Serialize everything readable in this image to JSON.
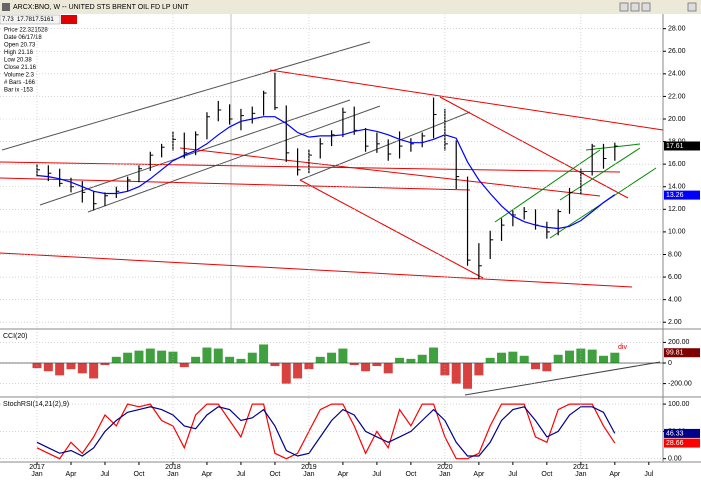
{
  "chart_data": [
    {
      "type": "ohlc",
      "title": "ARCX:BNO, W -- UNITED STS BRENT OIL FD LP UNIT",
      "quote": [
        "7.73",
        "17.78",
        "17.51",
        "61"
      ],
      "info": [
        "Price 22.321528",
        "Date 06/17/18",
        "Open 20.73",
        "High 21.16",
        "Low 20.38",
        "Close 21.16",
        "Volume 2.3",
        "# Bars -166",
        "Bar ix -153"
      ],
      "categories": [
        "2017-01",
        "2017-02",
        "2017-03",
        "2017-04",
        "2017-05",
        "2017-06",
        "2017-07",
        "2017-08",
        "2017-09",
        "2017-10",
        "2017-11",
        "2017-12",
        "2018-01",
        "2018-02",
        "2018-03",
        "2018-04",
        "2018-05",
        "2018-06",
        "2018-07",
        "2018-08",
        "2018-09",
        "2018-10",
        "2018-11",
        "2018-12",
        "2019-01",
        "2019-02",
        "2019-03",
        "2019-04",
        "2019-05",
        "2019-06",
        "2019-07",
        "2019-08",
        "2019-09",
        "2019-10",
        "2019-11",
        "2019-12",
        "2020-01",
        "2020-02",
        "2020-03",
        "2020-04",
        "2020-05",
        "2020-06",
        "2020-07",
        "2020-08",
        "2020-09",
        "2020-10",
        "2020-11",
        "2020-12",
        "2021-01",
        "2021-02",
        "2021-03",
        "2021-04",
        "2021-05",
        "2021-06",
        "2021-07"
      ],
      "high": [
        16.0,
        15.9,
        15.6,
        14.8,
        14.5,
        13.6,
        13.5,
        14.0,
        14.9,
        15.9,
        17.1,
        17.8,
        18.9,
        18.8,
        18.9,
        20.6,
        21.6,
        21.3,
        20.9,
        21.1,
        22.5,
        24.1,
        21.2,
        17.4,
        17.3,
        18.3,
        19.0,
        21.0,
        21.1,
        19.2,
        18.8,
        18.2,
        18.9,
        18.3,
        18.8,
        21.9,
        20.9,
        18.1,
        14.9,
        9.0,
        10.1,
        11.2,
        11.9,
        12.2,
        12.0,
        10.9,
        12.0,
        13.9,
        15.6,
        17.8,
        17.8,
        17.9,
        null,
        null,
        null
      ],
      "low": [
        14.9,
        14.5,
        14.0,
        13.5,
        12.6,
        11.9,
        12.3,
        13.0,
        13.6,
        14.4,
        15.4,
        16.6,
        17.2,
        16.5,
        16.8,
        18.2,
        19.8,
        19.5,
        19.0,
        19.6,
        20.3,
        20.8,
        16.2,
        15.0,
        15.2,
        16.5,
        17.6,
        18.4,
        18.6,
        17.1,
        17.0,
        16.3,
        16.5,
        17.1,
        17.5,
        18.3,
        17.2,
        13.8,
        7.0,
        5.8,
        7.6,
        9.2,
        10.5,
        11.1,
        10.2,
        9.4,
        9.7,
        11.6,
        13.3,
        15.0,
        15.6,
        16.3,
        null,
        null,
        null
      ],
      "close": [
        15.5,
        15.2,
        14.3,
        14.0,
        13.5,
        12.5,
        13.2,
        13.6,
        14.6,
        15.6,
        16.8,
        17.5,
        18.2,
        17.0,
        18.6,
        20.2,
        20.8,
        20.0,
        20.3,
        20.5,
        22.3,
        21.0,
        17.0,
        15.5,
        16.8,
        17.8,
        18.6,
        20.6,
        19.0,
        17.6,
        17.8,
        16.9,
        17.6,
        17.8,
        18.5,
        20.4,
        17.8,
        14.9,
        7.5,
        7.0,
        9.3,
        10.6,
        11.5,
        11.8,
        10.6,
        10.0,
        11.8,
        13.5,
        15.2,
        17.6,
        16.5,
        17.6,
        null,
        null,
        null
      ],
      "color": "#000000",
      "series": [
        {
          "color": "#0000ff",
          "values": [
            15.0,
            14.9,
            14.7,
            14.4,
            14.0,
            13.6,
            13.4,
            13.4,
            13.6,
            14.0,
            14.7,
            15.5,
            16.3,
            16.8,
            17.2,
            17.8,
            18.6,
            19.3,
            19.8,
            20.0,
            20.2,
            20.2,
            19.6,
            18.8,
            18.4,
            18.5,
            18.5,
            18.6,
            18.9,
            19.1,
            18.9,
            18.6,
            18.2,
            17.9,
            17.9,
            18.2,
            18.6,
            18.3,
            16.2,
            14.6,
            13.4,
            12.3,
            11.4,
            10.9,
            10.6,
            10.4,
            10.3,
            10.5,
            11.0,
            11.8,
            12.6,
            13.3,
            null,
            null,
            null
          ]
        }
      ],
      "markers": [
        {
          "value": 17.61,
          "color": "#000000"
        },
        {
          "value": 13.26,
          "color": "#0000ff"
        }
      ],
      "ylim": [
        1.4,
        29.3
      ],
      "yticks": [
        {
          "value": 28,
          "label": "28.00"
        },
        {
          "value": 26,
          "label": "26.00"
        },
        {
          "value": 24,
          "label": "24.00"
        },
        {
          "value": 22,
          "label": "22.00"
        },
        {
          "value": 20,
          "label": "20.00"
        },
        {
          "value": 18,
          "label": "18.00"
        },
        {
          "value": 16,
          "label": "16.00"
        },
        {
          "value": 14,
          "label": "14.00"
        },
        {
          "value": 12,
          "label": "12.00"
        },
        {
          "value": 10,
          "label": "10.00"
        },
        {
          "value": 8,
          "label": "8.00"
        },
        {
          "value": 6,
          "label": "6.00"
        },
        {
          "value": 4,
          "label": "4.00"
        },
        {
          "value": 2,
          "label": "2.00"
        }
      ],
      "grid": true
    },
    {
      "type": "bar",
      "title": "CCI(20)",
      "values": [
        -50,
        -80,
        -120,
        -60,
        -100,
        -150,
        -20,
        60,
        100,
        120,
        140,
        120,
        110,
        -40,
        60,
        150,
        140,
        60,
        40,
        100,
        180,
        -30,
        -200,
        -150,
        -60,
        60,
        100,
        140,
        -20,
        -80,
        -30,
        -100,
        50,
        40,
        80,
        150,
        -120,
        -200,
        -250,
        -120,
        50,
        100,
        110,
        70,
        -60,
        -80,
        80,
        120,
        140,
        130,
        70,
        100,
        null,
        null,
        null
      ],
      "color_pos": "#008000",
      "color_neg": "#cc0000",
      "annotation": "div",
      "markers": [
        {
          "value": 99.81,
          "color": "#800000"
        }
      ],
      "ylim": [
        -330,
        330
      ],
      "yticks": [
        {
          "value": 200,
          "label": "200.00"
        },
        0,
        {
          "value": -200,
          "label": "-200.00"
        }
      ],
      "grid": true
    },
    {
      "type": "line",
      "title": "StochRSI(14,21(2),9)",
      "series": [
        {
          "color": "#ff0000",
          "values": [
            20,
            10,
            0,
            30,
            10,
            40,
            80,
            60,
            100,
            95,
            100,
            70,
            60,
            20,
            80,
            100,
            100,
            70,
            40,
            100,
            100,
            10,
            0,
            10,
            50,
            90,
            100,
            100,
            60,
            10,
            50,
            20,
            90,
            60,
            100,
            100,
            40,
            0,
            0,
            10,
            60,
            100,
            100,
            100,
            40,
            30,
            90,
            100,
            100,
            100,
            60,
            28.66,
            null,
            null,
            null
          ]
        },
        {
          "color": "#00008b",
          "values": [
            30,
            20,
            10,
            15,
            5,
            20,
            50,
            70,
            85,
            90,
            95,
            90,
            80,
            60,
            55,
            80,
            95,
            90,
            70,
            75,
            90,
            60,
            15,
            5,
            10,
            40,
            70,
            90,
            80,
            50,
            40,
            30,
            40,
            50,
            70,
            90,
            70,
            30,
            5,
            5,
            30,
            70,
            90,
            95,
            70,
            40,
            50,
            80,
            95,
            95,
            85,
            46.33,
            null,
            null,
            null
          ]
        }
      ],
      "markers": [
        {
          "value": 46.33,
          "color": "#00008b"
        },
        {
          "value": 28.66,
          "color": "#ff0000"
        }
      ],
      "ylim": [
        -6,
        113
      ],
      "yticks": [
        {
          "value": 100,
          "label": "100.00"
        },
        {
          "value": 50,
          "label": "50.00"
        },
        {
          "value": 0,
          "label": "0.00"
        }
      ],
      "grid": true,
      "xticks": [
        {
          "value": "2017-01",
          "label": "Jan"
        },
        {
          "value": "2017-04",
          "label": "Apr"
        },
        {
          "value": "2017-07",
          "label": "Jul"
        },
        {
          "value": "2017-10",
          "label": "Oct"
        },
        {
          "value": "2018-01",
          "label": "Jan"
        },
        {
          "value": "2018-04",
          "label": "Apr"
        },
        {
          "value": "2018-07",
          "label": "Jul"
        },
        {
          "value": "2018-10",
          "label": "Oct"
        },
        {
          "value": "2019-01",
          "label": "Jan"
        },
        {
          "value": "2019-04",
          "label": "Apr"
        },
        {
          "value": "2019-07",
          "label": "Jul"
        },
        {
          "value": "2019-10",
          "label": "Oct"
        },
        {
          "value": "2020-01",
          "label": "Jan"
        },
        {
          "value": "2020-04",
          "label": "Apr"
        },
        {
          "value": "2020-07",
          "label": "Jul"
        },
        {
          "value": "2020-10",
          "label": "Oct"
        },
        {
          "value": "2021-01",
          "label": "Jan"
        },
        {
          "value": "2021-04",
          "label": "Apr"
        },
        {
          "value": "2021-07",
          "label": "Jul"
        }
      ],
      "year_labels": [
        {
          "value": "2017-01",
          "label": "2017"
        },
        {
          "value": "2018-01",
          "label": "2018"
        },
        {
          "value": "2019-01",
          "label": "2019"
        },
        {
          "value": "2020-01",
          "label": "2020"
        },
        {
          "value": "2021-01",
          "label": "2021"
        }
      ]
    }
  ]
}
